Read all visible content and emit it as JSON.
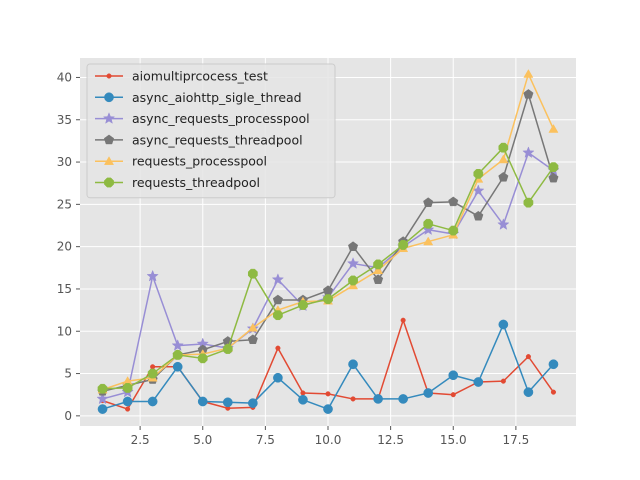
{
  "chart_data": {
    "type": "line",
    "title": "",
    "xlabel": "",
    "ylabel": "",
    "xlim": [
      0.1,
      19.9
    ],
    "ylim": [
      -1.2,
      42.3
    ],
    "x_ticks": [
      2.5,
      5.0,
      7.5,
      10.0,
      12.5,
      15.0,
      17.5
    ],
    "x_tick_labels": [
      "2.5",
      "5.0",
      "7.5",
      "10.0",
      "12.5",
      "15.0",
      "17.5"
    ],
    "y_ticks": [
      0,
      5,
      10,
      15,
      20,
      25,
      30,
      35,
      40
    ],
    "y_tick_labels": [
      "0",
      "5",
      "10",
      "15",
      "20",
      "25",
      "30",
      "35",
      "40"
    ],
    "grid": true,
    "legend_position": "upper-left",
    "x": [
      1,
      2,
      3,
      4,
      5,
      6,
      7,
      8,
      9,
      10,
      11,
      12,
      13,
      14,
      15,
      16,
      17,
      18,
      19
    ],
    "series": [
      {
        "name": "aiomultiprcocess_test",
        "color": "#E24A33",
        "marker": "dot",
        "values": [
          1.8,
          0.8,
          5.8,
          5.8,
          1.7,
          0.9,
          1.0,
          8.0,
          2.7,
          2.6,
          2.0,
          2.0,
          11.3,
          2.7,
          2.5,
          4.0,
          4.1,
          7.0,
          2.8
        ]
      },
      {
        "name": "async_aiohttp_sigle_thread",
        "color": "#348ABD",
        "marker": "circle",
        "values": [
          0.8,
          1.7,
          1.7,
          5.8,
          1.7,
          1.6,
          1.5,
          4.5,
          1.9,
          0.8,
          6.1,
          2.0,
          2.0,
          2.7,
          4.8,
          4.0,
          10.8,
          2.8,
          6.1
        ]
      },
      {
        "name": "async_requests_processpool",
        "color": "#988ED5",
        "marker": "star",
        "values": [
          2.0,
          2.8,
          16.5,
          8.3,
          8.5,
          8.0,
          10.3,
          16.1,
          13.0,
          14.0,
          18.0,
          17.5,
          20.0,
          22.0,
          21.5,
          26.6,
          22.6,
          31.1,
          29.0
        ]
      },
      {
        "name": "async_requests_threadpool",
        "color": "#777777",
        "marker": "pentagon",
        "values": [
          2.9,
          3.6,
          4.3,
          7.2,
          7.8,
          8.8,
          9.0,
          13.7,
          13.7,
          14.8,
          20.0,
          16.1,
          20.6,
          25.2,
          25.3,
          23.6,
          28.2,
          38.0,
          28.1
        ]
      },
      {
        "name": "requests_processpool",
        "color": "#FBC15E",
        "marker": "triangle",
        "values": [
          3.1,
          4.1,
          4.5,
          7.2,
          7.3,
          8.0,
          10.4,
          12.5,
          13.5,
          13.6,
          15.4,
          17.2,
          19.8,
          20.6,
          21.4,
          28.0,
          30.3,
          40.4,
          33.9
        ]
      },
      {
        "name": "requests_threadpool",
        "color": "#8EBA42",
        "marker": "octagon",
        "values": [
          3.2,
          3.3,
          5.0,
          7.2,
          6.8,
          7.9,
          16.8,
          11.9,
          13.1,
          13.8,
          16.0,
          17.9,
          20.2,
          22.7,
          21.9,
          28.6,
          31.7,
          25.2,
          29.4
        ]
      }
    ]
  }
}
